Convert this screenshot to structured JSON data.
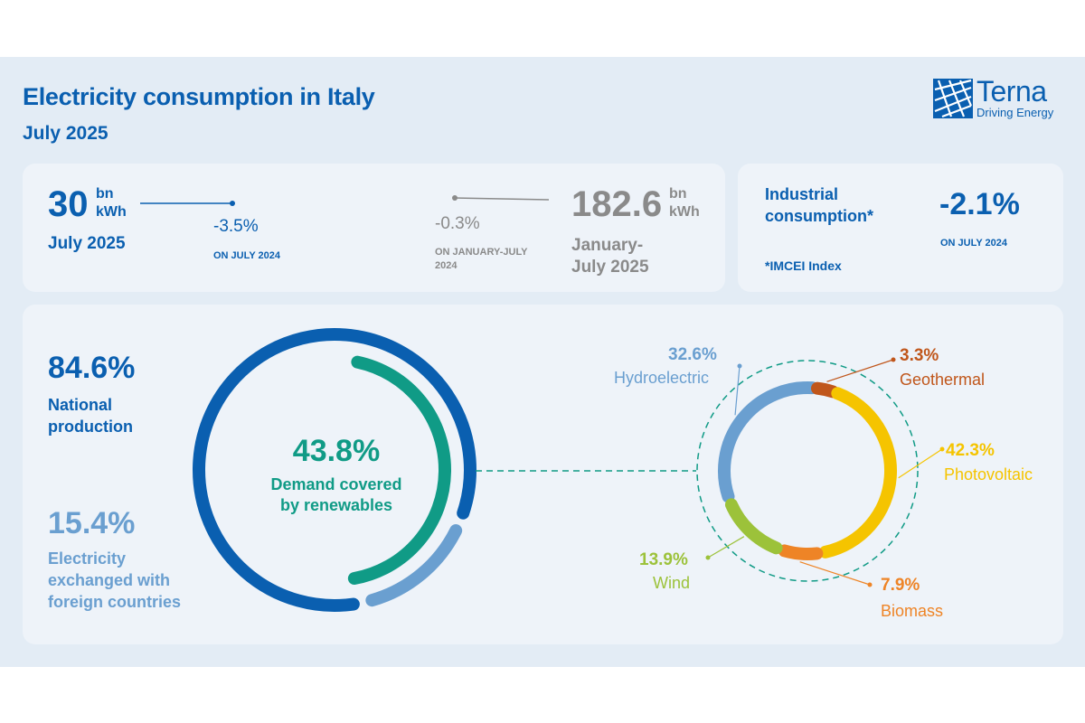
{
  "header": {
    "title": "Electricity consumption in Italy",
    "subtitle": "July 2025",
    "logo_name": "Terna",
    "logo_tagline": "Driving Energy"
  },
  "monthly": {
    "value": "30",
    "unit_line1": "bn",
    "unit_line2": "kWh",
    "period": "July 2025",
    "delta": "-3.5%",
    "delta_ref": "ON JULY 2024"
  },
  "ytd": {
    "value": "182.6",
    "unit_line1": "bn",
    "unit_line2": "kWh",
    "period_line1": "January-",
    "period_line2": "July 2025",
    "delta": "-0.3%",
    "delta_ref_line1": "ON JANUARY-JULY",
    "delta_ref_line2": "2024"
  },
  "industrial": {
    "label_line1": "Industrial",
    "label_line2": "consumption*",
    "value": "-2.1%",
    "ref": "ON JULY 2024",
    "note": "*IMCEI Index"
  },
  "colors": {
    "national": "#0a5fb0",
    "foreign": "#6a9fd0",
    "renewables": "#109b86",
    "hydroelectric": "#6a9fd0",
    "geothermal": "#c0561b",
    "photovoltaic": "#f5c400",
    "biomass": "#ee8426",
    "wind": "#9cc23a"
  },
  "chart_data": [
    {
      "type": "pie",
      "title": "",
      "series": [
        {
          "name": "National production",
          "value": 84.6,
          "label": "84.6%",
          "label_line1": "National",
          "label_line2": "production"
        },
        {
          "name": "Electricity exchanged with foreign countries",
          "value": 15.4,
          "label": "15.4%",
          "label_line1": "Electricity",
          "label_line2": "exchanged with",
          "label_line3": "foreign countries"
        }
      ],
      "inner": {
        "value": 43.8,
        "label": "43.8%",
        "label_line1": "Demand covered",
        "label_line2": "by renewables"
      }
    },
    {
      "type": "pie",
      "title": "",
      "series": [
        {
          "name": "Hydroelectric",
          "value": 32.6,
          "label": "32.6%"
        },
        {
          "name": "Geothermal",
          "value": 3.3,
          "label": "3.3%"
        },
        {
          "name": "Photovoltaic",
          "value": 42.3,
          "label": "42.3%"
        },
        {
          "name": "Biomass",
          "value": 7.9,
          "label": "7.9%"
        },
        {
          "name": "Wind",
          "value": 13.9,
          "label": "13.9%"
        }
      ]
    }
  ]
}
